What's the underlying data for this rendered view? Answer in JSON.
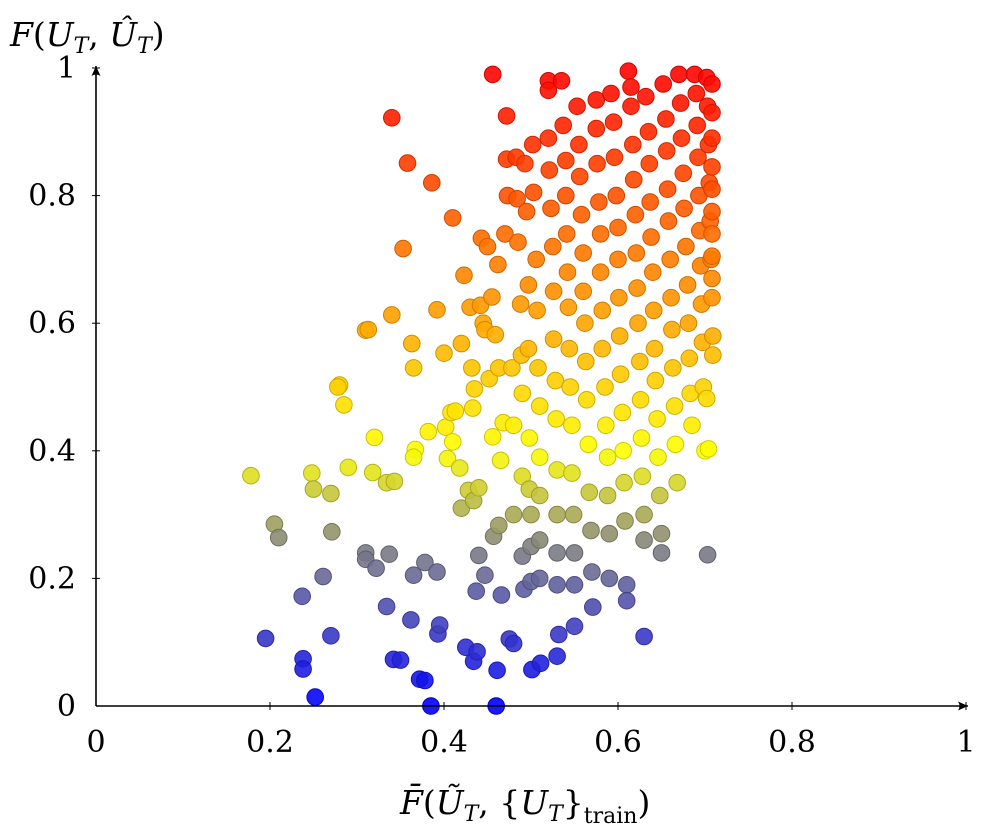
{
  "chart_data": {
    "type": "scatter",
    "title": "",
    "xlabel": "F̄(ŨT, {UT}train)",
    "ylabel": "F(UT, ÛT)",
    "xlim": [
      0,
      1
    ],
    "ylim": [
      0,
      1
    ],
    "x_ticks": [
      "0",
      "0.2",
      "0.4",
      "0.6",
      "0.8",
      "1"
    ],
    "y_ticks": [
      "0",
      "0.2",
      "0.4",
      "0.6",
      "0.8",
      "1"
    ],
    "grid": false,
    "legend": "none",
    "colormap": {
      "description": "point color encodes y value",
      "stops": [
        {
          "at": 0.0,
          "color": "#0000ff"
        },
        {
          "at": 0.25,
          "color": "#808080"
        },
        {
          "at": 0.4,
          "color": "#ffff00"
        },
        {
          "at": 0.6,
          "color": "#ffa500"
        },
        {
          "at": 1.0,
          "color": "#ff0000"
        }
      ]
    },
    "series": [
      {
        "points": [
          [
            0.178,
            0.361
          ],
          [
            0.205,
            0.285
          ],
          [
            0.21,
            0.264
          ],
          [
            0.195,
            0.106
          ],
          [
            0.237,
            0.172
          ],
          [
            0.238,
            0.074
          ],
          [
            0.238,
            0.058
          ],
          [
            0.252,
            0.014
          ],
          [
            0.248,
            0.365
          ],
          [
            0.25,
            0.34
          ],
          [
            0.27,
            0.333
          ],
          [
            0.271,
            0.273
          ],
          [
            0.261,
            0.203
          ],
          [
            0.27,
            0.11
          ],
          [
            0.28,
            0.503
          ],
          [
            0.278,
            0.5
          ],
          [
            0.285,
            0.472
          ],
          [
            0.29,
            0.374
          ],
          [
            0.31,
            0.589
          ],
          [
            0.313,
            0.59
          ],
          [
            0.32,
            0.421
          ],
          [
            0.318,
            0.366
          ],
          [
            0.31,
            0.24
          ],
          [
            0.31,
            0.23
          ],
          [
            0.322,
            0.216
          ],
          [
            0.334,
            0.35
          ],
          [
            0.337,
            0.238
          ],
          [
            0.334,
            0.156
          ],
          [
            0.34,
            0.922
          ],
          [
            0.34,
            0.613
          ],
          [
            0.343,
            0.352
          ],
          [
            0.342,
            0.073
          ],
          [
            0.35,
            0.072
          ],
          [
            0.353,
            0.717
          ],
          [
            0.358,
            0.851
          ],
          [
            0.362,
            0.135
          ],
          [
            0.363,
            0.568
          ],
          [
            0.365,
            0.53
          ],
          [
            0.367,
            0.402
          ],
          [
            0.365,
            0.39
          ],
          [
            0.365,
            0.205
          ],
          [
            0.372,
            0.042
          ],
          [
            0.378,
            0.04
          ],
          [
            0.382,
            0.43
          ],
          [
            0.378,
            0.225
          ],
          [
            0.386,
            0.82
          ],
          [
            0.385,
            0.0
          ],
          [
            0.392,
            0.621
          ],
          [
            0.392,
            0.21
          ],
          [
            0.393,
            0.113
          ],
          [
            0.395,
            0.127
          ],
          [
            0.4,
            0.553
          ],
          [
            0.402,
            0.437
          ],
          [
            0.404,
            0.388
          ],
          [
            0.41,
            0.765
          ],
          [
            0.408,
            0.46
          ],
          [
            0.41,
            0.414
          ],
          [
            0.413,
            0.462
          ],
          [
            0.418,
            0.373
          ],
          [
            0.42,
            0.568
          ],
          [
            0.42,
            0.31
          ],
          [
            0.423,
            0.675
          ],
          [
            0.428,
            0.338
          ],
          [
            0.425,
            0.092
          ],
          [
            0.43,
            0.625
          ],
          [
            0.432,
            0.53
          ],
          [
            0.433,
            0.467
          ],
          [
            0.434,
            0.322
          ],
          [
            0.434,
            0.07
          ],
          [
            0.435,
            0.497
          ],
          [
            0.437,
            0.18
          ],
          [
            0.438,
            0.085
          ],
          [
            0.44,
            0.236
          ],
          [
            0.44,
            0.342
          ],
          [
            0.442,
            0.628
          ],
          [
            0.443,
            0.733
          ],
          [
            0.445,
            0.6
          ],
          [
            0.447,
            0.59
          ],
          [
            0.447,
            0.205
          ],
          [
            0.45,
            0.72
          ],
          [
            0.452,
            0.513
          ],
          [
            0.456,
            0.99
          ],
          [
            0.455,
            0.641
          ],
          [
            0.456,
            0.422
          ],
          [
            0.457,
            0.266
          ],
          [
            0.459,
            0.582
          ],
          [
            0.46,
            0.0
          ],
          [
            0.461,
            0.056
          ],
          [
            0.462,
            0.692
          ],
          [
            0.463,
            0.53
          ],
          [
            0.465,
            0.385
          ],
          [
            0.463,
            0.283
          ],
          [
            0.466,
            0.174
          ],
          [
            0.468,
            0.444
          ],
          [
            0.47,
            0.74
          ],
          [
            0.472,
            0.925
          ],
          [
            0.472,
            0.857
          ],
          [
            0.473,
            0.8
          ],
          [
            0.475,
            0.105
          ],
          [
            0.478,
            0.53
          ],
          [
            0.48,
            0.44
          ],
          [
            0.48,
            0.3
          ],
          [
            0.48,
            0.098
          ],
          [
            0.483,
            0.86
          ],
          [
            0.484,
            0.795
          ],
          [
            0.485,
            0.727
          ],
          [
            0.488,
            0.63
          ],
          [
            0.489,
            0.55
          ],
          [
            0.49,
            0.49
          ],
          [
            0.49,
            0.36
          ],
          [
            0.49,
            0.235
          ],
          [
            0.492,
            0.183
          ],
          [
            0.493,
            0.85
          ],
          [
            0.495,
            0.775
          ],
          [
            0.497,
            0.66
          ],
          [
            0.497,
            0.56
          ],
          [
            0.498,
            0.42
          ],
          [
            0.498,
            0.34
          ],
          [
            0.5,
            0.3
          ],
          [
            0.5,
            0.25
          ],
          [
            0.5,
            0.195
          ],
          [
            0.501,
            0.057
          ],
          [
            0.502,
            0.88
          ],
          [
            0.503,
            0.805
          ],
          [
            0.506,
            0.7
          ],
          [
            0.507,
            0.62
          ],
          [
            0.508,
            0.53
          ],
          [
            0.51,
            0.47
          ],
          [
            0.51,
            0.39
          ],
          [
            0.51,
            0.33
          ],
          [
            0.51,
            0.26
          ],
          [
            0.51,
            0.2
          ],
          [
            0.511,
            0.067
          ],
          [
            0.52,
            0.98
          ],
          [
            0.52,
            0.965
          ],
          [
            0.52,
            0.89
          ],
          [
            0.521,
            0.84
          ],
          [
            0.523,
            0.78
          ],
          [
            0.525,
            0.72
          ],
          [
            0.526,
            0.65
          ],
          [
            0.526,
            0.575
          ],
          [
            0.528,
            0.51
          ],
          [
            0.529,
            0.45
          ],
          [
            0.53,
            0.37
          ],
          [
            0.53,
            0.3
          ],
          [
            0.53,
            0.24
          ],
          [
            0.53,
            0.19
          ],
          [
            0.53,
            0.078
          ],
          [
            0.532,
            0.112
          ],
          [
            0.535,
            0.98
          ],
          [
            0.537,
            0.91
          ],
          [
            0.54,
            0.855
          ],
          [
            0.54,
            0.8
          ],
          [
            0.541,
            0.74
          ],
          [
            0.542,
            0.68
          ],
          [
            0.543,
            0.625
          ],
          [
            0.544,
            0.56
          ],
          [
            0.545,
            0.5
          ],
          [
            0.547,
            0.44
          ],
          [
            0.547,
            0.365
          ],
          [
            0.549,
            0.3
          ],
          [
            0.55,
            0.24
          ],
          [
            0.55,
            0.19
          ],
          [
            0.55,
            0.125
          ],
          [
            0.553,
            0.94
          ],
          [
            0.555,
            0.88
          ],
          [
            0.556,
            0.83
          ],
          [
            0.558,
            0.77
          ],
          [
            0.56,
            0.71
          ],
          [
            0.56,
            0.65
          ],
          [
            0.562,
            0.6
          ],
          [
            0.563,
            0.54
          ],
          [
            0.564,
            0.48
          ],
          [
            0.566,
            0.41
          ],
          [
            0.567,
            0.335
          ],
          [
            0.569,
            0.275
          ],
          [
            0.57,
            0.21
          ],
          [
            0.571,
            0.155
          ],
          [
            0.575,
            0.95
          ],
          [
            0.575,
            0.905
          ],
          [
            0.576,
            0.85
          ],
          [
            0.578,
            0.79
          ],
          [
            0.58,
            0.74
          ],
          [
            0.58,
            0.68
          ],
          [
            0.582,
            0.62
          ],
          [
            0.582,
            0.56
          ],
          [
            0.585,
            0.5
          ],
          [
            0.586,
            0.44
          ],
          [
            0.588,
            0.39
          ],
          [
            0.588,
            0.33
          ],
          [
            0.59,
            0.27
          ],
          [
            0.59,
            0.2
          ],
          [
            0.592,
            0.96
          ],
          [
            0.595,
            0.915
          ],
          [
            0.596,
            0.86
          ],
          [
            0.598,
            0.8
          ],
          [
            0.6,
            0.75
          ],
          [
            0.6,
            0.7
          ],
          [
            0.601,
            0.64
          ],
          [
            0.602,
            0.58
          ],
          [
            0.603,
            0.52
          ],
          [
            0.605,
            0.46
          ],
          [
            0.606,
            0.4
          ],
          [
            0.607,
            0.35
          ],
          [
            0.608,
            0.29
          ],
          [
            0.61,
            0.19
          ],
          [
            0.61,
            0.165
          ],
          [
            0.612,
            0.995
          ],
          [
            0.615,
            0.97
          ],
          [
            0.615,
            0.94
          ],
          [
            0.617,
            0.88
          ],
          [
            0.618,
            0.825
          ],
          [
            0.62,
            0.77
          ],
          [
            0.621,
            0.71
          ],
          [
            0.622,
            0.655
          ],
          [
            0.623,
            0.6
          ],
          [
            0.625,
            0.54
          ],
          [
            0.626,
            0.48
          ],
          [
            0.627,
            0.42
          ],
          [
            0.628,
            0.36
          ],
          [
            0.63,
            0.3
          ],
          [
            0.63,
            0.26
          ],
          [
            0.63,
            0.109
          ],
          [
            0.632,
            0.955
          ],
          [
            0.635,
            0.9
          ],
          [
            0.636,
            0.85
          ],
          [
            0.637,
            0.79
          ],
          [
            0.638,
            0.735
          ],
          [
            0.64,
            0.68
          ],
          [
            0.641,
            0.62
          ],
          [
            0.642,
            0.56
          ],
          [
            0.643,
            0.51
          ],
          [
            0.645,
            0.45
          ],
          [
            0.646,
            0.39
          ],
          [
            0.648,
            0.33
          ],
          [
            0.65,
            0.27
          ],
          [
            0.65,
            0.24
          ],
          [
            0.652,
            0.975
          ],
          [
            0.655,
            0.92
          ],
          [
            0.656,
            0.87
          ],
          [
            0.657,
            0.81
          ],
          [
            0.658,
            0.76
          ],
          [
            0.66,
            0.7
          ],
          [
            0.661,
            0.64
          ],
          [
            0.662,
            0.59
          ],
          [
            0.663,
            0.53
          ],
          [
            0.665,
            0.47
          ],
          [
            0.666,
            0.41
          ],
          [
            0.668,
            0.35
          ],
          [
            0.67,
            0.99
          ],
          [
            0.672,
            0.945
          ],
          [
            0.673,
            0.89
          ],
          [
            0.675,
            0.835
          ],
          [
            0.676,
            0.78
          ],
          [
            0.678,
            0.72
          ],
          [
            0.68,
            0.66
          ],
          [
            0.681,
            0.6
          ],
          [
            0.682,
            0.545
          ],
          [
            0.683,
            0.49
          ],
          [
            0.685,
            0.44
          ],
          [
            0.688,
            0.99
          ],
          [
            0.69,
            0.96
          ],
          [
            0.691,
            0.91
          ],
          [
            0.692,
            0.86
          ],
          [
            0.693,
            0.8
          ],
          [
            0.694,
            0.745
          ],
          [
            0.695,
            0.69
          ],
          [
            0.696,
            0.63
          ],
          [
            0.697,
            0.57
          ],
          [
            0.698,
            0.5
          ],
          [
            0.7,
            0.4
          ],
          [
            0.702,
            0.985
          ],
          [
            0.703,
            0.94
          ],
          [
            0.704,
            0.88
          ],
          [
            0.705,
            0.82
          ],
          [
            0.706,
            0.76
          ],
          [
            0.707,
            0.7
          ],
          [
            0.708,
            0.64
          ],
          [
            0.709,
            0.58
          ],
          [
            0.709,
            0.55
          ],
          [
            0.703,
            0.237
          ],
          [
            0.704,
            0.403
          ],
          [
            0.702,
            0.482
          ],
          [
            0.708,
            0.975
          ],
          [
            0.708,
            0.93
          ],
          [
            0.708,
            0.89
          ],
          [
            0.708,
            0.845
          ],
          [
            0.708,
            0.81
          ],
          [
            0.708,
            0.775
          ],
          [
            0.708,
            0.74
          ],
          [
            0.708,
            0.705
          ],
          [
            0.708,
            0.67
          ]
        ]
      }
    ]
  }
}
